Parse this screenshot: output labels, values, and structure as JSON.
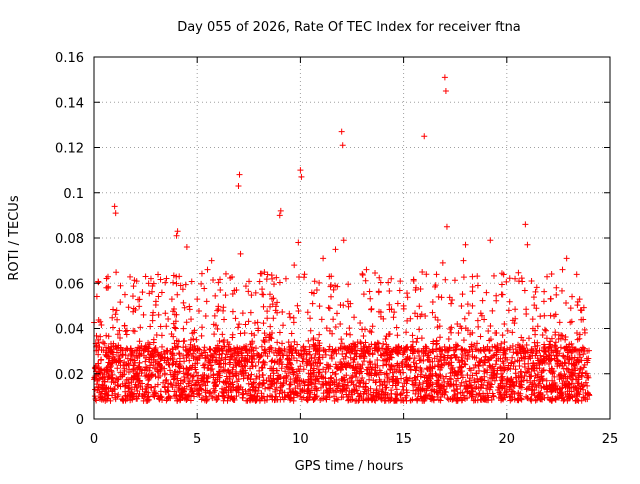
{
  "chart_data": {
    "type": "scatter",
    "title": "Day 055 of 2026, Rate Of TEC Index for receiver ftna",
    "xlabel": "GPS time / hours",
    "ylabel": "ROTI / TECUs",
    "xlim": [
      0,
      25
    ],
    "ylim": [
      0,
      0.16
    ],
    "xticks": [
      0,
      5,
      10,
      15,
      20,
      25
    ],
    "xtick_labels": [
      "0",
      "5",
      "10",
      "15",
      "20",
      "25"
    ],
    "yticks": [
      0,
      0.02,
      0.04,
      0.06,
      0.08,
      0.1,
      0.12,
      0.14,
      0.16
    ],
    "ytick_labels": [
      "0",
      "0.02",
      "0.04",
      "0.06",
      "0.08",
      "0.1",
      "0.12",
      "0.14",
      "0.16"
    ],
    "grid": true,
    "marker": "+",
    "color": "#ff0000",
    "points": [
      [
        0.1,
        0.021
      ],
      [
        0.2,
        0.035
      ],
      [
        0.3,
        0.043
      ],
      [
        0.4,
        0.015
      ],
      [
        0.6,
        0.058
      ],
      [
        0.7,
        0.025
      ],
      [
        0.9,
        0.018
      ],
      [
        1.0,
        0.094
      ],
      [
        1.05,
        0.091
      ],
      [
        1.1,
        0.048
      ],
      [
        1.3,
        0.031
      ],
      [
        1.5,
        0.055
      ],
      [
        1.7,
        0.022
      ],
      [
        1.9,
        0.039
      ],
      [
        2.1,
        0.027
      ],
      [
        2.4,
        0.046
      ],
      [
        2.5,
        0.063
      ],
      [
        2.7,
        0.033
      ],
      [
        3.0,
        0.052
      ],
      [
        3.2,
        0.019
      ],
      [
        3.5,
        0.041
      ],
      [
        3.8,
        0.029
      ],
      [
        4.0,
        0.081
      ],
      [
        4.05,
        0.083
      ],
      [
        4.2,
        0.059
      ],
      [
        4.5,
        0.076
      ],
      [
        4.7,
        0.035
      ],
      [
        5.0,
        0.053
      ],
      [
        5.2,
        0.017
      ],
      [
        5.5,
        0.066
      ],
      [
        5.7,
        0.07
      ],
      [
        6.0,
        0.031
      ],
      [
        6.3,
        0.044
      ],
      [
        6.6,
        0.025
      ],
      [
        6.9,
        0.057
      ],
      [
        7.0,
        0.103
      ],
      [
        7.05,
        0.108
      ],
      [
        7.1,
        0.073
      ],
      [
        7.3,
        0.038
      ],
      [
        7.6,
        0.047
      ],
      [
        7.9,
        0.028
      ],
      [
        8.2,
        0.055
      ],
      [
        8.5,
        0.036
      ],
      [
        8.8,
        0.048
      ],
      [
        9.0,
        0.09
      ],
      [
        9.05,
        0.092
      ],
      [
        9.3,
        0.062
      ],
      [
        9.5,
        0.045
      ],
      [
        9.7,
        0.068
      ],
      [
        9.9,
        0.078
      ],
      [
        10.0,
        0.11
      ],
      [
        10.05,
        0.107
      ],
      [
        10.2,
        0.064
      ],
      [
        10.5,
        0.039
      ],
      [
        10.8,
        0.057
      ],
      [
        11.1,
        0.071
      ],
      [
        11.4,
        0.063
      ],
      [
        11.7,
        0.075
      ],
      [
        12.0,
        0.127
      ],
      [
        12.05,
        0.121
      ],
      [
        12.1,
        0.079
      ],
      [
        12.3,
        0.052
      ],
      [
        12.6,
        0.045
      ],
      [
        12.9,
        0.034
      ],
      [
        13.2,
        0.066
      ],
      [
        13.5,
        0.041
      ],
      [
        13.8,
        0.056
      ],
      [
        14.1,
        0.029
      ],
      [
        14.4,
        0.062
      ],
      [
        14.7,
        0.037
      ],
      [
        15.0,
        0.05
      ],
      [
        15.3,
        0.023
      ],
      [
        15.6,
        0.058
      ],
      [
        15.9,
        0.065
      ],
      [
        16.0,
        0.125
      ],
      [
        16.1,
        0.064
      ],
      [
        16.4,
        0.047
      ],
      [
        16.7,
        0.054
      ],
      [
        16.9,
        0.069
      ],
      [
        17.0,
        0.151
      ],
      [
        17.05,
        0.145
      ],
      [
        17.1,
        0.085
      ],
      [
        17.3,
        0.051
      ],
      [
        17.6,
        0.042
      ],
      [
        17.9,
        0.07
      ],
      [
        18.0,
        0.077
      ],
      [
        18.3,
        0.033
      ],
      [
        18.6,
        0.059
      ],
      [
        18.9,
        0.044
      ],
      [
        19.2,
        0.079
      ],
      [
        19.5,
        0.038
      ],
      [
        19.8,
        0.055
      ],
      [
        20.1,
        0.048
      ],
      [
        20.4,
        0.062
      ],
      [
        20.7,
        0.036
      ],
      [
        20.9,
        0.086
      ],
      [
        21.0,
        0.077
      ],
      [
        21.2,
        0.061
      ],
      [
        21.5,
        0.041
      ],
      [
        21.8,
        0.052
      ],
      [
        22.1,
        0.033
      ],
      [
        22.4,
        0.058
      ],
      [
        22.7,
        0.066
      ],
      [
        22.9,
        0.071
      ],
      [
        23.1,
        0.049
      ],
      [
        23.4,
        0.038
      ],
      [
        23.7,
        0.044
      ],
      [
        23.9,
        0.025
      ]
    ],
    "dense_band": {
      "x_range": [
        0,
        24
      ],
      "y_range": [
        0.008,
        0.032
      ]
    }
  }
}
